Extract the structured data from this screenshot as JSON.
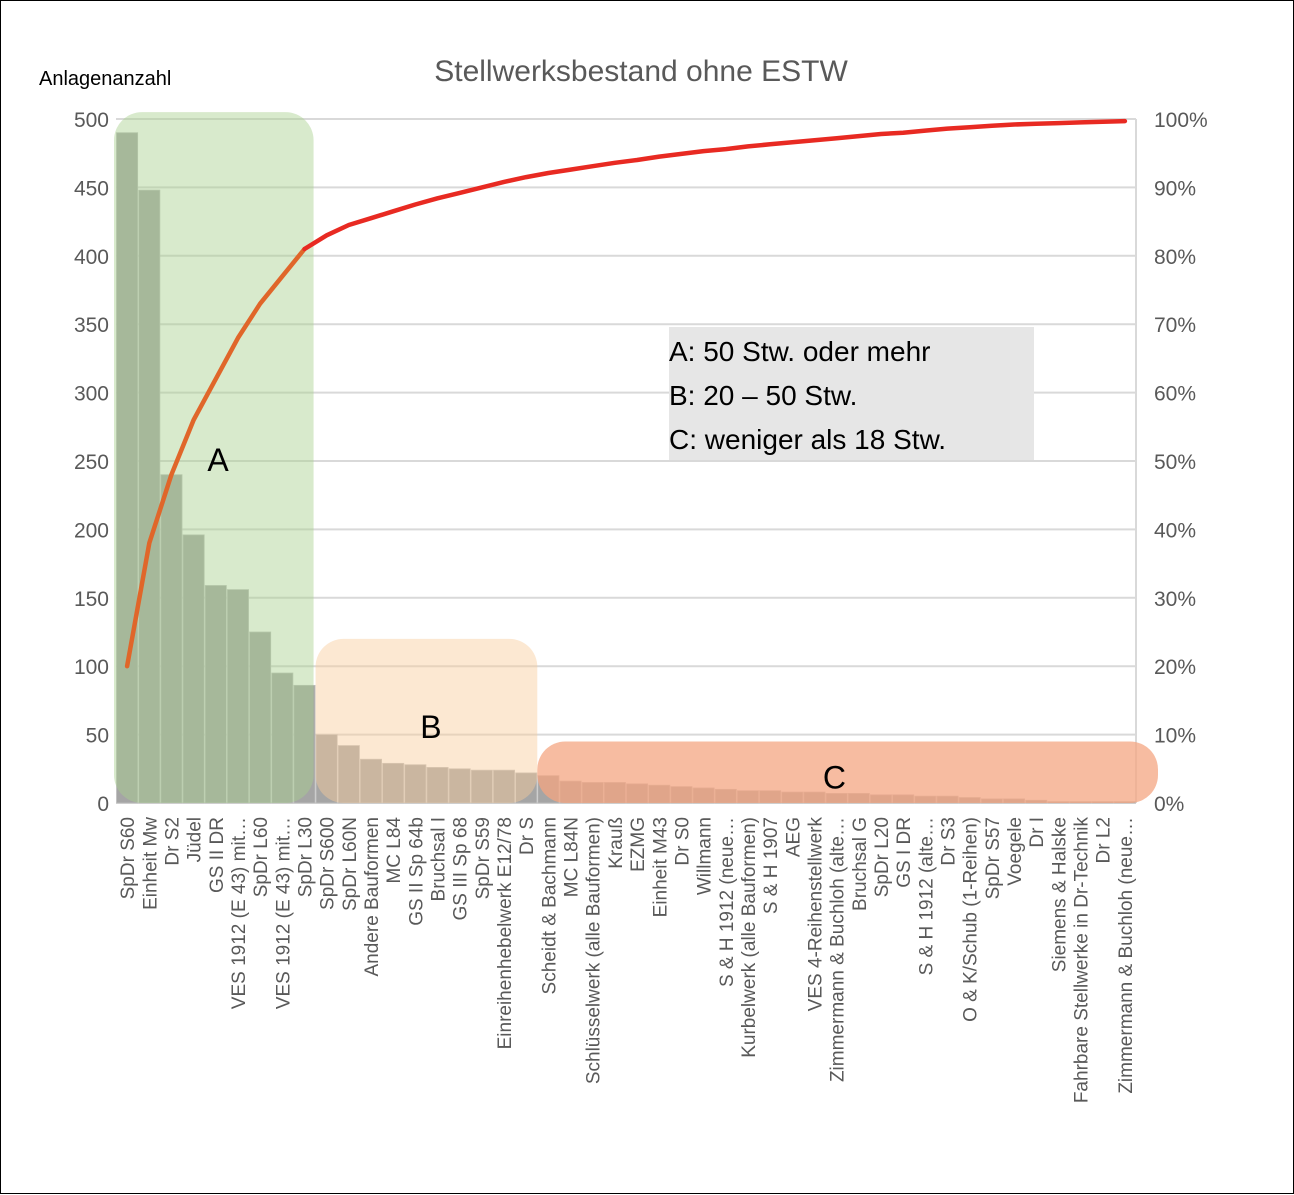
{
  "chart_data": {
    "type": "bar",
    "title": "Stellwerksbestand ohne ESTW",
    "ylabel": "Anlagenanzahl",
    "ylim": [
      0,
      500
    ],
    "y_ticks": [
      "0",
      "50",
      "100",
      "150",
      "200",
      "250",
      "300",
      "350",
      "400",
      "450",
      "500"
    ],
    "y2lim": [
      0,
      100
    ],
    "y2_ticks": [
      "0%",
      "10%",
      "20%",
      "30%",
      "40%",
      "50%",
      "60%",
      "70%",
      "80%",
      "90%",
      "100%"
    ],
    "grid": true,
    "categories": [
      "SpDr S60",
      "Einheit Mw",
      "Dr S2",
      "Jüdel",
      "GS II DR",
      "VES 1912 (E 43) mit…",
      "SpDr L60",
      "VES 1912 (E 43) mit…",
      "SpDr L30",
      "SpDr S600",
      "SpDr L60N",
      "Andere Bauformen",
      "MC L84",
      "GS II Sp 64b",
      "Bruchsal I",
      "GS III Sp 68",
      "SpDr S59",
      "Einreihenhebelwerk E12/78",
      "Dr S",
      "Scheidt & Bachmann",
      "MC L84N",
      "Schlüsselwerk (alle Bauformen)",
      "Krauß",
      "EZMG",
      "Einheit M43",
      "Dr S0",
      "Willmann",
      "S & H 1912 (neue…",
      "Kurbelwerk (alle Bauformen)",
      "S & H 1907",
      "AEG",
      "VES 4-Reihenstellwerk",
      "Zimmermann & Buchloh (alte…",
      "Bruchsal G",
      "SpDr L20",
      "GS I DR",
      "S & H 1912 (alte…",
      "Dr S3",
      "O & K/Schub (1-Reihen)",
      "SpDr S57",
      "Voegele",
      "Dr I",
      "Siemens & Halske",
      "Fahrbare Stellwerke in Dr-Technik",
      "Dr L2",
      "Zimmermann & Buchloh (neue…"
    ],
    "series": [
      {
        "type": "bar",
        "color": "#a5a5a5",
        "values": [
          490,
          448,
          240,
          196,
          159,
          156,
          125,
          95,
          86,
          50,
          42,
          32,
          29,
          28,
          26,
          25,
          24,
          24,
          22,
          20,
          16,
          15,
          15,
          14,
          13,
          12,
          11,
          10,
          9,
          9,
          8,
          8,
          7,
          7,
          6,
          6,
          5,
          5,
          4,
          3,
          3,
          2,
          1,
          1,
          1,
          1
        ]
      },
      {
        "type": "line",
        "axis": "secondary",
        "color": "#e82a22",
        "values": [
          20,
          38,
          48,
          56,
          62,
          68,
          73,
          77,
          81,
          83,
          84.5,
          85.5,
          86.5,
          87.5,
          88.4,
          89.2,
          90,
          90.8,
          91.5,
          92.1,
          92.6,
          93.1,
          93.6,
          94,
          94.5,
          94.9,
          95.3,
          95.6,
          96,
          96.3,
          96.6,
          96.9,
          97.2,
          97.5,
          97.8,
          98,
          98.3,
          98.6,
          98.8,
          99,
          99.2,
          99.3,
          99.4,
          99.5,
          99.6,
          99.7
        ]
      }
    ],
    "zones": [
      {
        "label": "A",
        "color": "#a9d08e",
        "opacity": 0.45
      },
      {
        "label": "B",
        "color": "#f9cb9c",
        "opacity": 0.45
      },
      {
        "label": "C",
        "color": "#f4a582",
        "opacity": 0.75
      }
    ],
    "legend_box": {
      "lines": [
        "A: 50 Stw. oder mehr",
        "B: 20 – 50 Stw.",
        "C: weniger als 18 Stw."
      ],
      "background": "#e6e6e6"
    }
  }
}
